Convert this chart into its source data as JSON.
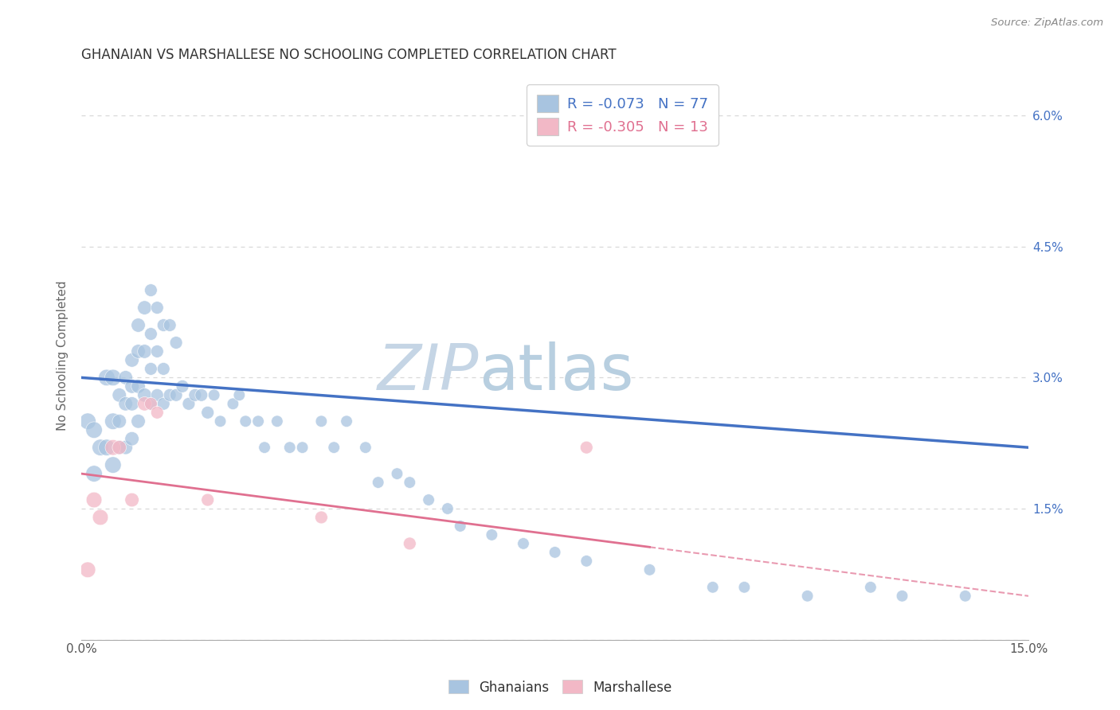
{
  "title": "GHANAIAN VS MARSHALLESE NO SCHOOLING COMPLETED CORRELATION CHART",
  "source": "Source: ZipAtlas.com",
  "ylabel": "No Schooling Completed",
  "xlim": [
    0.0,
    0.15
  ],
  "ylim": [
    0.0,
    0.065
  ],
  "yticks": [
    0.0,
    0.015,
    0.03,
    0.045,
    0.06
  ],
  "xticks": [
    0.0,
    0.015,
    0.03,
    0.045,
    0.06,
    0.075,
    0.09,
    0.105,
    0.12,
    0.135,
    0.15
  ],
  "background_color": "#ffffff",
  "grid_color": "#d8d8d8",
  "blue_color": "#a8c4e0",
  "pink_color": "#f2b8c6",
  "line_blue": "#4472c4",
  "line_pink": "#e07090",
  "legend_R_blue": "-0.073",
  "legend_N_blue": "77",
  "legend_R_pink": "-0.305",
  "legend_N_pink": "13",
  "ghanaian_x": [
    0.001,
    0.002,
    0.002,
    0.003,
    0.004,
    0.004,
    0.005,
    0.005,
    0.005,
    0.006,
    0.006,
    0.006,
    0.007,
    0.007,
    0.007,
    0.008,
    0.008,
    0.008,
    0.008,
    0.009,
    0.009,
    0.009,
    0.009,
    0.01,
    0.01,
    0.01,
    0.011,
    0.011,
    0.011,
    0.011,
    0.012,
    0.012,
    0.012,
    0.013,
    0.013,
    0.013,
    0.014,
    0.014,
    0.015,
    0.015,
    0.016,
    0.017,
    0.018,
    0.019,
    0.02,
    0.021,
    0.022,
    0.024,
    0.025,
    0.026,
    0.028,
    0.029,
    0.031,
    0.033,
    0.035,
    0.038,
    0.04,
    0.042,
    0.045,
    0.047,
    0.05,
    0.052,
    0.055,
    0.058,
    0.06,
    0.065,
    0.07,
    0.075,
    0.08,
    0.09,
    0.1,
    0.105,
    0.115,
    0.125,
    0.13,
    0.14
  ],
  "ghanaian_y": [
    0.025,
    0.024,
    0.019,
    0.022,
    0.022,
    0.03,
    0.03,
    0.025,
    0.02,
    0.028,
    0.025,
    0.022,
    0.03,
    0.027,
    0.022,
    0.032,
    0.029,
    0.027,
    0.023,
    0.036,
    0.033,
    0.029,
    0.025,
    0.038,
    0.033,
    0.028,
    0.04,
    0.035,
    0.031,
    0.027,
    0.038,
    0.033,
    0.028,
    0.036,
    0.031,
    0.027,
    0.036,
    0.028,
    0.034,
    0.028,
    0.029,
    0.027,
    0.028,
    0.028,
    0.026,
    0.028,
    0.025,
    0.027,
    0.028,
    0.025,
    0.025,
    0.022,
    0.025,
    0.022,
    0.022,
    0.025,
    0.022,
    0.025,
    0.022,
    0.018,
    0.019,
    0.018,
    0.016,
    0.015,
    0.013,
    0.012,
    0.011,
    0.01,
    0.009,
    0.008,
    0.006,
    0.006,
    0.005,
    0.006,
    0.005,
    0.005
  ],
  "marshallese_x": [
    0.001,
    0.002,
    0.003,
    0.005,
    0.006,
    0.008,
    0.01,
    0.011,
    0.012,
    0.02,
    0.038,
    0.052,
    0.08
  ],
  "marshallese_y": [
    0.008,
    0.016,
    0.014,
    0.022,
    0.022,
    0.016,
    0.027,
    0.027,
    0.026,
    0.016,
    0.014,
    0.011,
    0.022
  ],
  "blue_trend": [
    0.03,
    0.022
  ],
  "pink_trend": [
    0.019,
    0.005
  ],
  "watermark_zip": "ZIP",
  "watermark_atlas": "atlas",
  "watermark_color_zip": "#c5d5e5",
  "watermark_color_atlas": "#b8cfe0"
}
